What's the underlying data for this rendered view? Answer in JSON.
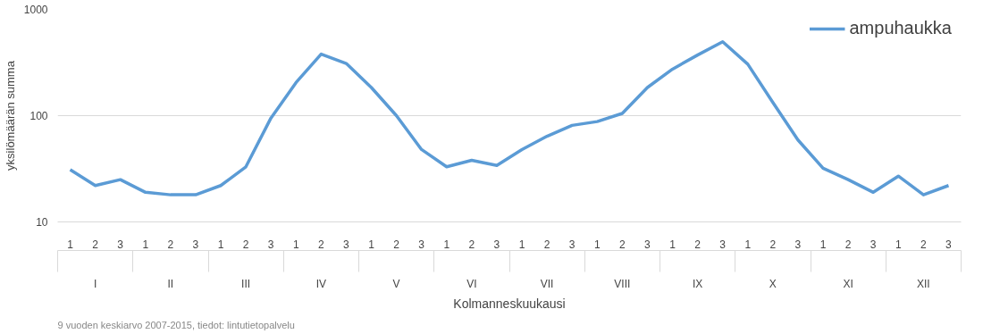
{
  "chart_data": {
    "type": "line",
    "xlabel": "Kolmanneskuukausi",
    "ylabel": "yksilömäärän summa",
    "categories": [
      "1",
      "2",
      "3",
      "1",
      "2",
      "3",
      "1",
      "2",
      "3",
      "1",
      "2",
      "3",
      "1",
      "2",
      "3",
      "1",
      "2",
      "3",
      "1",
      "2",
      "3",
      "1",
      "2",
      "3",
      "1",
      "2",
      "3",
      "1",
      "2",
      "3",
      "1",
      "2",
      "3",
      "1",
      "2",
      "3"
    ],
    "series": [
      {
        "name": "ampuhaukka",
        "color": "#5b9bd5",
        "values": [
          31,
          22,
          25,
          19,
          18,
          18,
          22,
          33,
          95,
          205,
          379,
          310,
          184,
          100,
          48,
          33,
          38,
          34,
          48,
          64,
          81,
          88,
          105,
          184,
          274,
          372,
          496,
          305,
          133,
          59,
          32,
          25,
          19,
          27,
          18,
          22
        ]
      }
    ],
    "annotations": [
      "I",
      "II",
      "III",
      "IV",
      "V",
      "VI",
      "VII",
      "VIII",
      "IX",
      "X",
      "XI",
      "XII",
      "9 vuoden keskiarvo 2007-2015, tiedot: lintutietopalvelu"
    ],
    "log": "y",
    "ylim": [
      10,
      1000
    ],
    "yticks": [
      10,
      100,
      1000
    ],
    "grid": "y",
    "legend": "top right",
    "marker": "none",
    "line_style": "solid"
  }
}
